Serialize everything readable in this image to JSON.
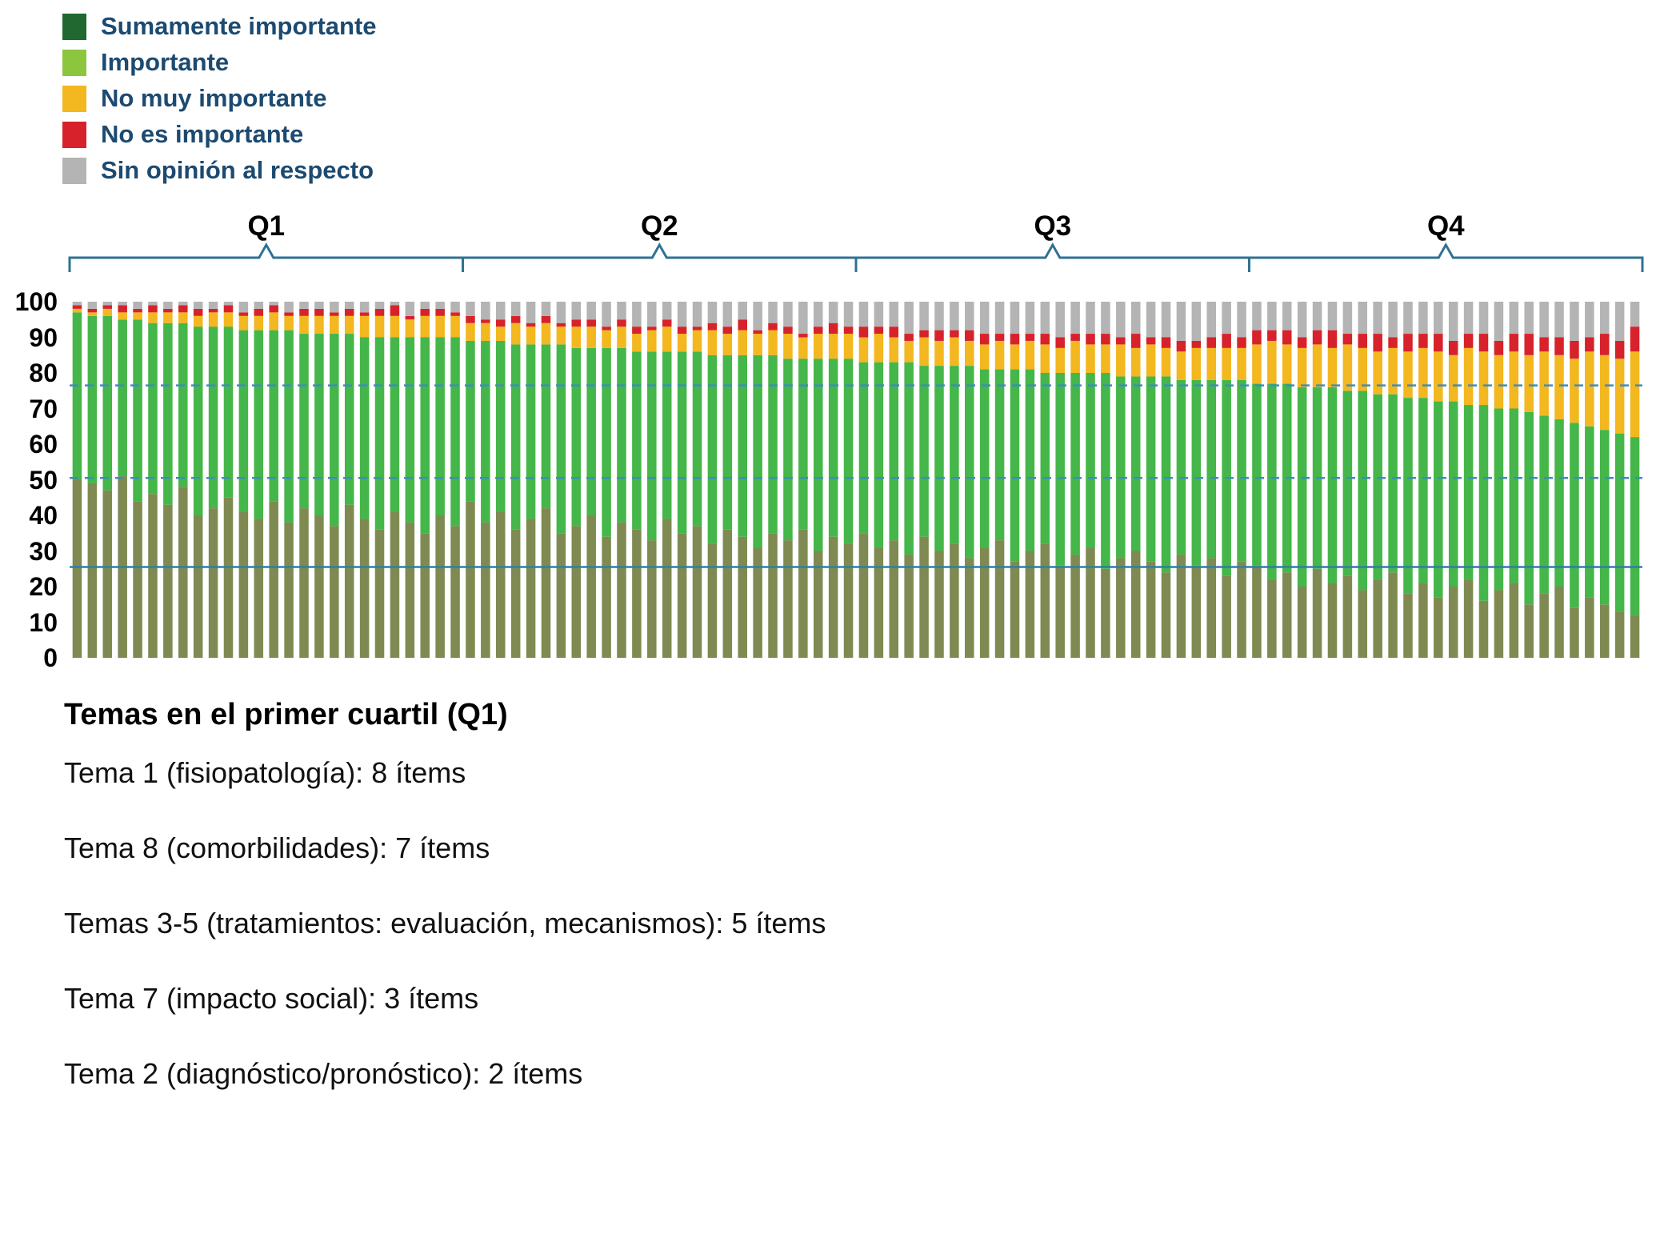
{
  "figure": {
    "legend": {
      "items": [
        {
          "label": "Sumamente importante",
          "color": "#20682f"
        },
        {
          "label": "Importante",
          "color": "#8cc63e"
        },
        {
          "label": "No muy importante",
          "color": "#f3b71f"
        },
        {
          "label": "No es importante",
          "color": "#d7222b"
        },
        {
          "label": "Sin opinión al respecto",
          "color": "#b4b4b4"
        }
      ]
    },
    "footer": {
      "title": "Temas en el primer cuartil (Q1)",
      "lines": [
        "Tema 1 (fisiopatología): 8 ítems",
        "Tema 8 (comorbilidades): 7 ítems",
        "Temas 3-5 (tratamientos: evaluación, mecanismos): 5 ítems",
        "Tema 7 (impacto social): 3 ítems",
        "Tema 2 (diagnóstico/pronóstico): 2 ítems"
      ]
    }
  },
  "chart_data": {
    "type": "bar",
    "stacked": true,
    "percent": true,
    "title": "",
    "xlabel": "",
    "ylabel": "",
    "y_axis": {
      "range": [
        0,
        100
      ],
      "ticks": [
        0,
        10,
        20,
        30,
        40,
        50,
        60,
        70,
        80,
        90,
        100
      ]
    },
    "x_axis_note": "104 unlabeled survey items sorted by decreasing importance, grouped in quartiles",
    "quartiles": [
      {
        "label": "Q1",
        "bar_range": [
          1,
          26
        ]
      },
      {
        "label": "Q2",
        "bar_range": [
          27,
          52
        ]
      },
      {
        "label": "Q3",
        "bar_range": [
          53,
          78
        ]
      },
      {
        "label": "Q4",
        "bar_range": [
          79,
          104
        ]
      }
    ],
    "reference_lines": [
      {
        "y": 76.5,
        "style": "dashed",
        "color": "#3b8dbf"
      },
      {
        "y": 50.5,
        "style": "dashed",
        "color": "#3b8dbf"
      },
      {
        "y": 25.5,
        "style": "solid",
        "color": "#2d7fa9"
      }
    ],
    "series_order": [
      "Sumamente importante",
      "Importante",
      "No muy importante",
      "No es importante",
      "Sin opinión al respecto"
    ],
    "bar_colors": [
      "#7f8a52",
      "#45b649",
      "#f3b71f",
      "#d7222b",
      "#b4b4b4"
    ],
    "bracket_color": "#2e7293",
    "bars": [
      [
        50,
        47,
        1,
        1,
        1
      ],
      [
        49,
        47,
        1,
        1,
        2
      ],
      [
        47,
        49,
        2,
        1,
        1
      ],
      [
        51,
        44,
        2,
        2,
        1
      ],
      [
        44,
        51,
        2,
        1,
        2
      ],
      [
        46,
        48,
        3,
        2,
        1
      ],
      [
        43,
        51,
        3,
        1,
        2
      ],
      [
        48,
        46,
        3,
        2,
        1
      ],
      [
        40,
        53,
        3,
        2,
        2
      ],
      [
        42,
        51,
        4,
        1,
        2
      ],
      [
        45,
        48,
        4,
        2,
        1
      ],
      [
        41,
        51,
        4,
        1,
        3
      ],
      [
        39,
        53,
        4,
        2,
        2
      ],
      [
        44,
        48,
        5,
        2,
        1
      ],
      [
        38,
        54,
        4,
        1,
        3
      ],
      [
        42,
        49,
        5,
        2,
        2
      ],
      [
        40,
        51,
        5,
        2,
        2
      ],
      [
        37,
        54,
        5,
        1,
        3
      ],
      [
        43,
        48,
        5,
        2,
        2
      ],
      [
        39,
        51,
        6,
        1,
        3
      ],
      [
        36,
        54,
        6,
        2,
        2
      ],
      [
        41,
        49,
        6,
        3,
        1
      ],
      [
        38,
        52,
        5,
        1,
        4
      ],
      [
        35,
        55,
        6,
        2,
        2
      ],
      [
        40,
        50,
        6,
        2,
        2
      ],
      [
        37,
        53,
        6,
        1,
        3
      ],
      [
        44,
        45,
        5,
        2,
        4
      ],
      [
        38,
        51,
        5,
        1,
        5
      ],
      [
        41,
        48,
        4,
        2,
        5
      ],
      [
        36,
        52,
        6,
        2,
        4
      ],
      [
        39,
        49,
        5,
        1,
        6
      ],
      [
        42,
        46,
        6,
        2,
        4
      ],
      [
        35,
        53,
        5,
        1,
        6
      ],
      [
        37,
        50,
        6,
        2,
        5
      ],
      [
        40,
        47,
        6,
        2,
        5
      ],
      [
        34,
        53,
        5,
        1,
        7
      ],
      [
        38,
        49,
        6,
        2,
        5
      ],
      [
        36,
        50,
        5,
        2,
        7
      ],
      [
        33,
        53,
        6,
        1,
        7
      ],
      [
        39,
        47,
        7,
        2,
        5
      ],
      [
        35,
        51,
        5,
        2,
        7
      ],
      [
        37,
        49,
        6,
        1,
        7
      ],
      [
        32,
        53,
        7,
        2,
        6
      ],
      [
        36,
        49,
        6,
        2,
        7
      ],
      [
        34,
        51,
        7,
        3,
        5
      ],
      [
        31,
        54,
        6,
        1,
        8
      ],
      [
        35,
        50,
        7,
        2,
        6
      ],
      [
        33,
        51,
        7,
        2,
        7
      ],
      [
        36,
        48,
        6,
        1,
        9
      ],
      [
        30,
        54,
        7,
        2,
        7
      ],
      [
        34,
        50,
        7,
        3,
        6
      ],
      [
        32,
        52,
        7,
        2,
        7
      ],
      [
        35,
        48,
        7,
        3,
        7
      ],
      [
        31,
        52,
        8,
        2,
        7
      ],
      [
        33,
        50,
        7,
        3,
        7
      ],
      [
        29,
        54,
        6,
        2,
        9
      ],
      [
        34,
        48,
        8,
        2,
        8
      ],
      [
        30,
        52,
        7,
        3,
        8
      ],
      [
        32,
        50,
        8,
        2,
        8
      ],
      [
        28,
        54,
        7,
        3,
        8
      ],
      [
        31,
        50,
        7,
        3,
        9
      ],
      [
        33,
        48,
        8,
        2,
        9
      ],
      [
        27,
        54,
        7,
        3,
        9
      ],
      [
        30,
        51,
        8,
        2,
        9
      ],
      [
        32,
        48,
        8,
        3,
        9
      ],
      [
        26,
        54,
        7,
        3,
        10
      ],
      [
        29,
        51,
        9,
        2,
        9
      ],
      [
        31,
        49,
        8,
        3,
        9
      ],
      [
        25,
        55,
        8,
        3,
        9
      ],
      [
        28,
        51,
        9,
        2,
        10
      ],
      [
        30,
        49,
        8,
        4,
        9
      ],
      [
        27,
        52,
        9,
        2,
        10
      ],
      [
        24,
        55,
        8,
        3,
        10
      ],
      [
        29,
        49,
        8,
        3,
        11
      ],
      [
        26,
        52,
        9,
        2,
        11
      ],
      [
        28,
        50,
        9,
        3,
        10
      ],
      [
        23,
        55,
        9,
        4,
        9
      ],
      [
        27,
        51,
        9,
        3,
        10
      ],
      [
        26,
        51,
        11,
        4,
        8
      ],
      [
        22,
        55,
        12,
        3,
        8
      ],
      [
        24,
        53,
        11,
        4,
        8
      ],
      [
        20,
        56,
        11,
        3,
        10
      ],
      [
        25,
        51,
        12,
        4,
        8
      ],
      [
        21,
        55,
        11,
        5,
        8
      ],
      [
        23,
        52,
        13,
        3,
        9
      ],
      [
        19,
        56,
        12,
        4,
        9
      ],
      [
        22,
        52,
        12,
        5,
        9
      ],
      [
        24,
        50,
        13,
        3,
        10
      ],
      [
        18,
        55,
        13,
        5,
        9
      ],
      [
        21,
        52,
        14,
        4,
        9
      ],
      [
        17,
        55,
        14,
        5,
        9
      ],
      [
        20,
        52,
        13,
        4,
        11
      ],
      [
        22,
        49,
        16,
        4,
        9
      ],
      [
        16,
        55,
        15,
        5,
        9
      ],
      [
        19,
        51,
        15,
        4,
        11
      ],
      [
        21,
        49,
        16,
        5,
        9
      ],
      [
        15,
        54,
        16,
        6,
        9
      ],
      [
        18,
        50,
        18,
        4,
        10
      ],
      [
        20,
        47,
        18,
        5,
        10
      ],
      [
        14,
        52,
        18,
        5,
        11
      ],
      [
        17,
        48,
        21,
        4,
        10
      ],
      [
        15,
        49,
        21,
        6,
        9
      ],
      [
        13,
        50,
        21,
        5,
        11
      ],
      [
        12,
        50,
        24,
        7,
        7
      ]
    ]
  }
}
